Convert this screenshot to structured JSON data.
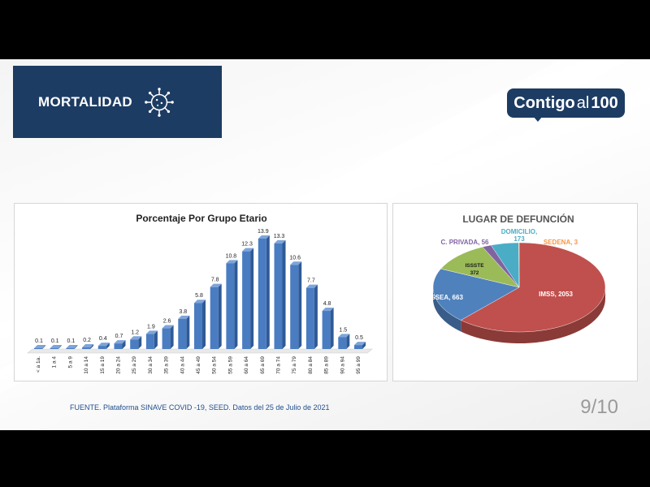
{
  "header": {
    "title": "MORTALIDAD",
    "icon": "virus-icon"
  },
  "logo": {
    "part1": "Contigo",
    "part2": "al",
    "part3": "100"
  },
  "colors": {
    "header_bg": "#1d3c63",
    "bar": "#4a7cc2",
    "pie_imss": "#c0504d",
    "pie_issea": "#4f81bd",
    "pie_issste": "#9bbb59",
    "pie_cprivada": "#8064a2",
    "pie_domicilio": "#4bacc6",
    "pie_sedena": "#f79646"
  },
  "chart_data": [
    {
      "type": "bar",
      "title": "Porcentaje Por Grupo Etario",
      "categories": [
        "< a 1a.",
        "1 a 4",
        "5 a 9",
        "10 a 14",
        "15 a 19",
        "20 a 24",
        "25 a 29",
        "30 a 34",
        "35 a 39",
        "40 a 44",
        "45 a 49",
        "50 a 54",
        "55 a 59",
        "60 a 64",
        "65 a 69",
        "70 a 74",
        "75 a 79",
        "80 a 84",
        "85 a 89",
        "90 a 94",
        "95 a 99"
      ],
      "values": [
        0.1,
        0.1,
        0.1,
        0.2,
        0.4,
        0.7,
        1.2,
        1.9,
        2.6,
        3.8,
        5.8,
        7.8,
        10.8,
        12.3,
        13.9,
        13.3,
        10.6,
        7.7,
        4.8,
        1.5,
        0.5
      ],
      "value_labels": [
        "0.1",
        "0.1",
        "0.1",
        "0.2",
        "0.4",
        "0.7",
        "1.2",
        "1.9",
        "2.6",
        "3.8",
        "5.8",
        "7.8",
        "10.8",
        "12.3",
        "13.9",
        "13.3",
        "10.6",
        "7.7",
        "4.8",
        "1.5",
        "0.5"
      ],
      "ylim": [
        0,
        14
      ]
    },
    {
      "type": "pie",
      "title": "LUGAR DE DEFUNCIÓN",
      "slices": [
        {
          "label": "IMSS, 2053",
          "value": 2053
        },
        {
          "label": "ISSEA, 663",
          "value": 663
        },
        {
          "label": "ISSSTE 372",
          "value": 372
        },
        {
          "label": "C. PRIVADA, 56",
          "value": 56
        },
        {
          "label": "DOMICILIO, 173",
          "value": 173
        },
        {
          "label": "SEDENA, 3",
          "value": 3
        }
      ]
    }
  ],
  "footer": {
    "source": "FUENTE. Plataforma SINAVE COVID -19, SEED. Datos del 25 de Julio de 2021",
    "page": "9/10"
  }
}
